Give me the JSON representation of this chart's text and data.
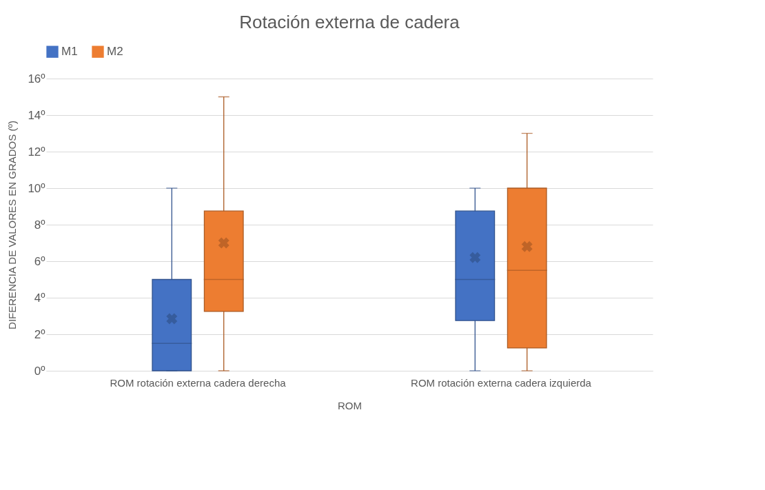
{
  "chart_data": {
    "type": "box",
    "title": "Rotación externa de cadera",
    "xlabel": "ROM",
    "ylabel": "DIFERENCIA DE VALORES EN GRADOS (º)",
    "categories": [
      "ROM rotación externa cadera derecha",
      "ROM rotación externa cadera izquierda"
    ],
    "series": [
      {
        "name": "M1",
        "color": "#4472c4",
        "boxes": [
          {
            "low": 0,
            "q1": 0,
            "median": 1.5,
            "q3": 5,
            "high": 10,
            "mean": 2.85
          },
          {
            "low": 0,
            "q1": 2.75,
            "median": 5,
            "q3": 8.75,
            "high": 10,
            "mean": 6.2
          }
        ]
      },
      {
        "name": "M2",
        "color": "#ed7d31",
        "boxes": [
          {
            "low": 0,
            "q1": 3.25,
            "median": 5,
            "q3": 8.75,
            "high": 15,
            "mean": 7
          },
          {
            "low": 0,
            "q1": 1.25,
            "median": 5.5,
            "q3": 10,
            "high": 13,
            "mean": 6.8
          }
        ]
      }
    ],
    "ylim": [
      0,
      16
    ],
    "yticks": [
      {
        "value": 0,
        "label": "0º"
      },
      {
        "value": 2,
        "label": "2º"
      },
      {
        "value": 4,
        "label": "4º"
      },
      {
        "value": 6,
        "label": "6º"
      },
      {
        "value": 8,
        "label": "8º"
      },
      {
        "value": 10,
        "label": "10º"
      },
      {
        "value": 12,
        "label": "12º"
      },
      {
        "value": 14,
        "label": "14º"
      },
      {
        "value": 16,
        "label": "16º"
      }
    ],
    "grid": "y",
    "legend": "top",
    "marker": "cross"
  }
}
